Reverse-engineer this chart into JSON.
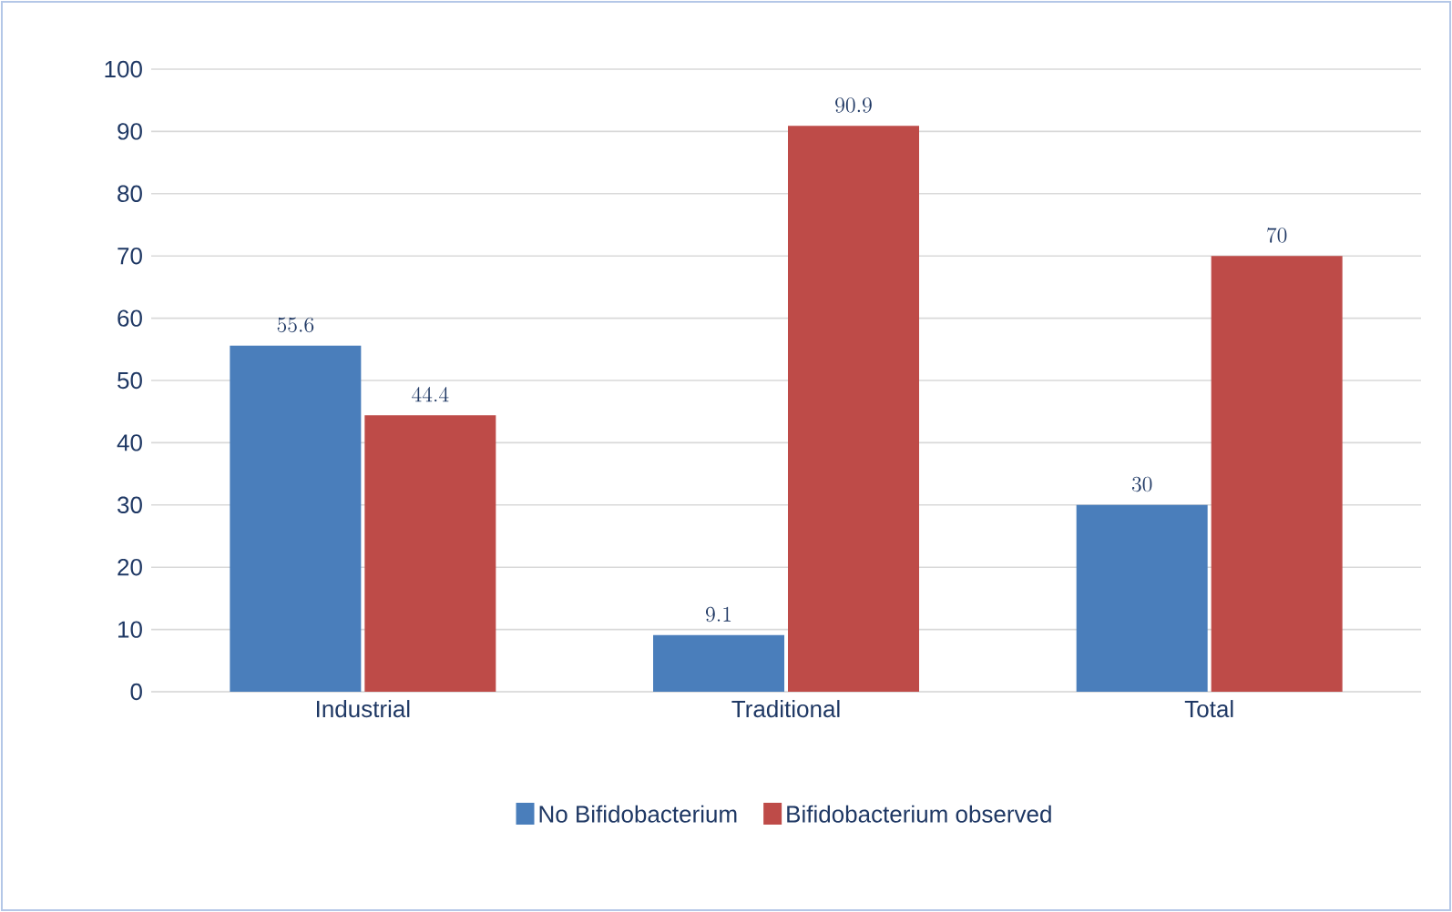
{
  "chart_data": {
    "type": "bar",
    "categories": [
      "Industrial",
      "Traditional",
      "Total"
    ],
    "series": [
      {
        "name": "No Bifidobacterium",
        "color": "#4a7ebb",
        "values": [
          55.6,
          9.1,
          30
        ]
      },
      {
        "name": "Bifidobacterium observed",
        "color": "#be4b48",
        "values": [
          44.4,
          90.9,
          70
        ]
      }
    ],
    "ylim": [
      0,
      100
    ],
    "yticks": [
      0,
      10,
      20,
      30,
      40,
      50,
      60,
      70,
      80,
      90,
      100
    ],
    "grid": "y",
    "legend": "bottom",
    "data_labels": true
  }
}
